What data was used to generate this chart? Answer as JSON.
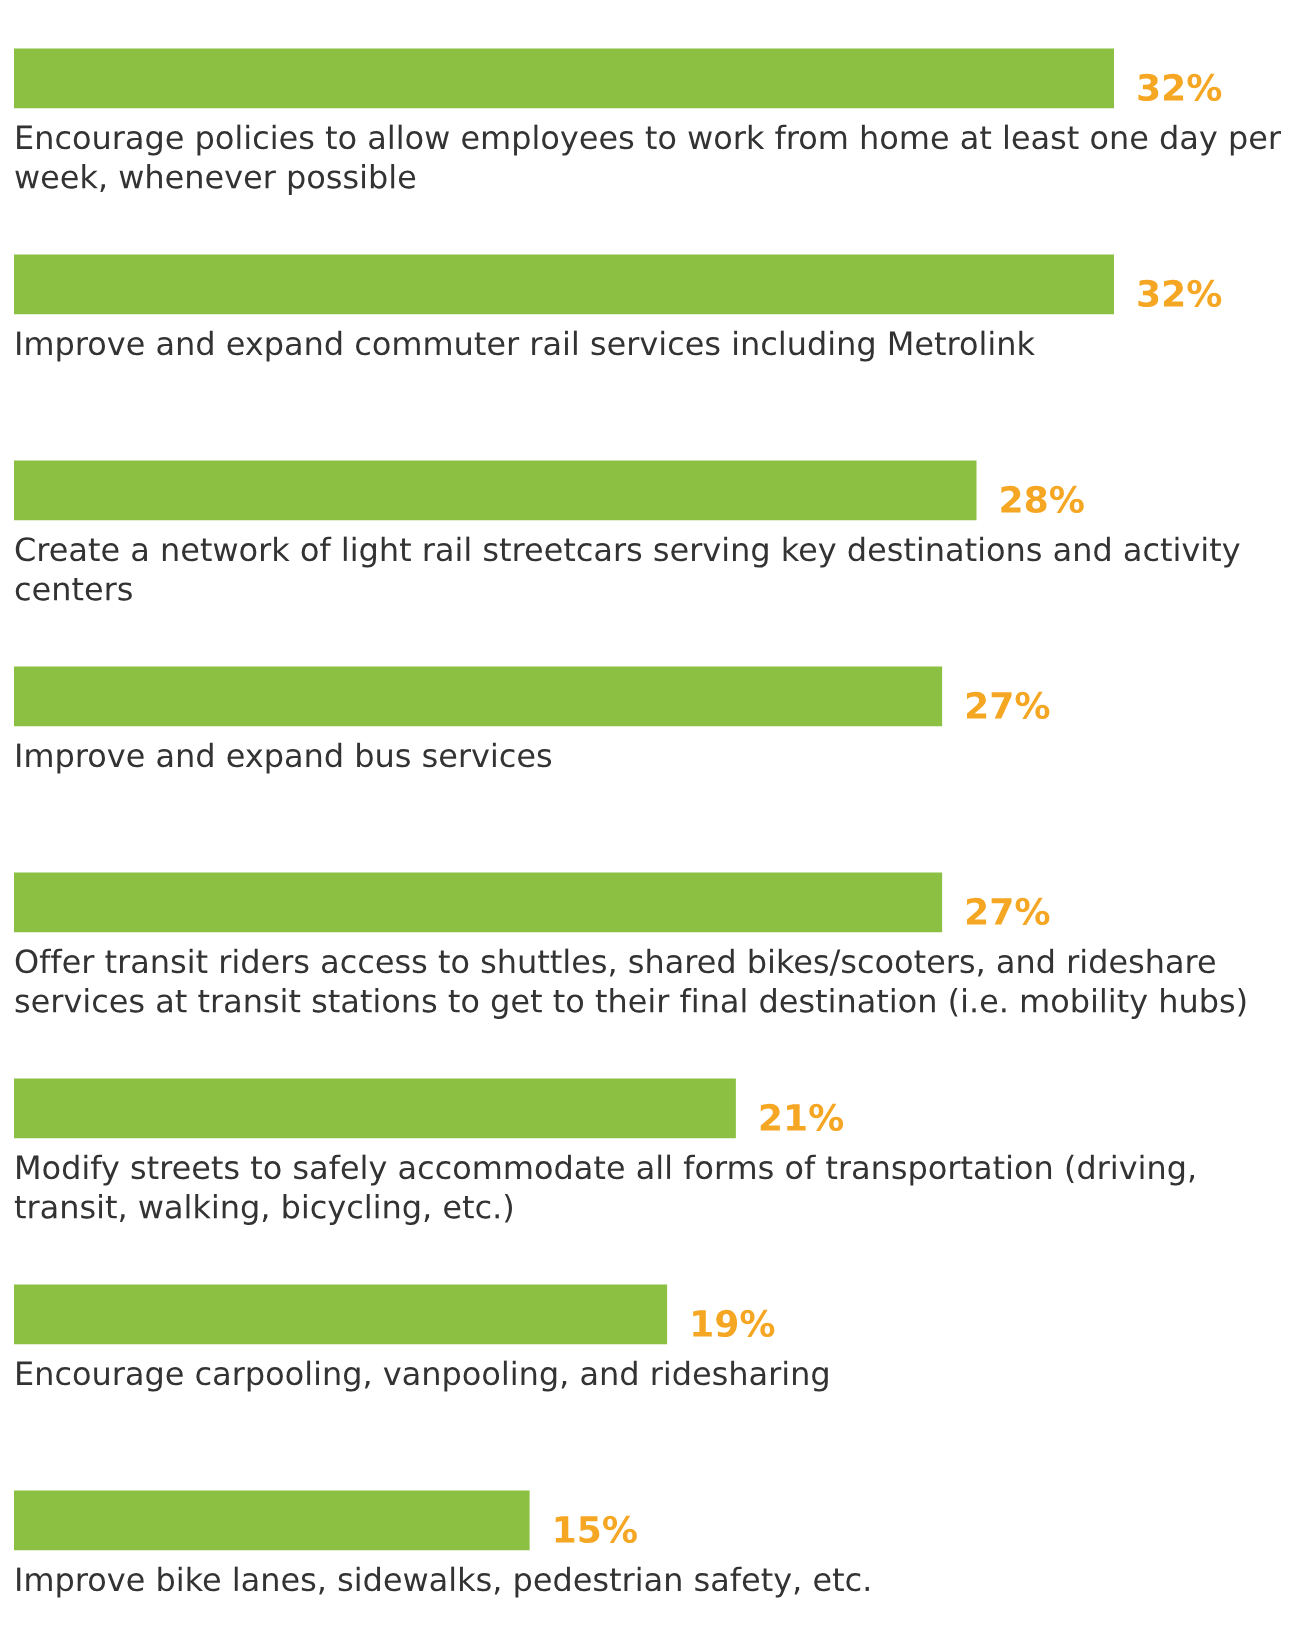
{
  "chart_data": {
    "type": "bar",
    "orientation": "horizontal",
    "categories": [
      "Encourage policies to allow employees to work from home at least one day per week, whenever possible",
      "Improve and expand commuter rail services including Metrolink",
      "Create a network of light rail streetcars serving key destinations and activity centers",
      "Improve and expand bus services",
      "Offer transit riders access to shuttles, shared bikes/scooters, and rideshare services at transit stations to get to their final destination (i.e. mobility hubs)",
      "Modify streets to safely accommodate all forms of transportation (driving, transit, walking, bicycling, etc.)",
      "Encourage carpooling, vanpooling, and ridesharing",
      "Improve bike lanes, sidewalks, pedestrian safety, etc."
    ],
    "values": [
      32,
      32,
      28,
      27,
      27,
      21,
      19,
      15
    ],
    "value_labels": [
      "32%",
      "32%",
      "28%",
      "27%",
      "27%",
      "21%",
      "19%",
      "15%"
    ],
    "color": "#8cc043"
  }
}
